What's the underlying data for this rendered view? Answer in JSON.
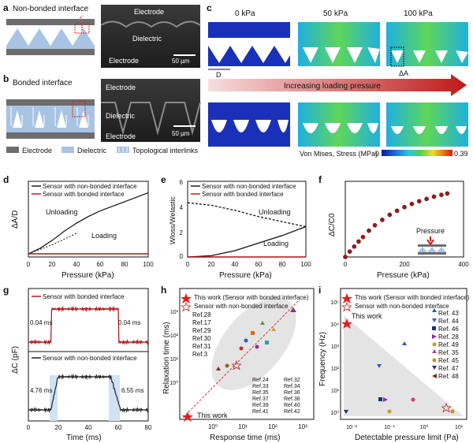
{
  "figure": {
    "panel_a": {
      "letter": "a",
      "callout": "Non-bonded interface",
      "sem_labels": [
        "Electrode",
        "Dielectric",
        "Electrode"
      ],
      "scale": "50 µm"
    },
    "panel_b": {
      "letter": "b",
      "callout": "Bonded interface",
      "sem_labels": [
        "Electrode",
        "Dielectric",
        "Electrode"
      ],
      "scale": "50 µm"
    },
    "legend_ab": {
      "electrode": "Electrode",
      "dielectric": "Dielectric",
      "interlinks": "Topological interlinks",
      "colors": {
        "electrode": "#6d6d6d",
        "dielectric": "#a9c3e3"
      }
    },
    "panel_c": {
      "letter": "c",
      "pressures": [
        "0 kPa",
        "50 kPa",
        "100 kPa"
      ],
      "dim_D": "D",
      "dim_dA": "ΔA",
      "arrow_text": "Increasing loading pressure",
      "colorbar_title": "Von Mises, Stress (MPa)",
      "cbar_min": "0",
      "cbar_max": "0.39"
    },
    "panel_d": {
      "letter": "d",
      "ylabel": "ΔA/D",
      "xlabel": "Pressure (kPa)",
      "legend": [
        "Sensor with non-bonded interface",
        "Sensor with bonded interface"
      ],
      "ann_unloading": "Unloading",
      "ann_loading": "Loading",
      "xticks": [
        "0",
        "20",
        "40",
        "60",
        "80",
        "100"
      ]
    },
    "panel_e": {
      "letter": "e",
      "ylabel": "Wloss/Welastic",
      "xlabel": "Pressure (kPa)",
      "legend": [
        "Sensor with non-bonded interface",
        "Sensor with bonded interface"
      ],
      "ann_unloading": "Unloading",
      "ann_loading": "Loading",
      "xticks": [
        "0",
        "20",
        "40",
        "60",
        "80",
        "100"
      ],
      "yticks": [
        "0",
        "2",
        "4",
        "6"
      ]
    },
    "panel_f": {
      "letter": "f",
      "ylabel": "ΔC/C0",
      "xlabel": "Pressure (kPa)",
      "annotation": "Pressure",
      "xticks": [
        "0",
        "200",
        "400"
      ]
    },
    "panel_g": {
      "letter": "g",
      "ylabel": "ΔC (pF)",
      "xlabel": "Time (ms)",
      "top_label": "Sensor with bonded interface",
      "bottom_label": "Sensor with non-bonded interface",
      "top_rise": "0.04 ms",
      "top_fall": "0.04 ms",
      "bottom_rise": "4.76 ms",
      "bottom_fall": "6.55 ms",
      "xticks": [
        "0",
        "20",
        "40",
        "60",
        "80"
      ]
    },
    "panel_h": {
      "letter": "h",
      "ylabel": "Relaxation time (ms)",
      "xlabel": "Response time (ms)",
      "legend_star": "This work (Sensor with bonded interface)",
      "legend_open": "Sensor with non-bonded interface",
      "this_work": "This work",
      "refs_left": [
        "Ref.28",
        "Ref.17",
        "Ref.29",
        "Ref.30",
        "Ref.31",
        "Ref.3"
      ],
      "refs_grid": [
        "Ref.24",
        "Ref.32",
        "Ref.33",
        "Ref.34",
        "Ref.35",
        "Ref.36",
        "Ref.37",
        "Ref.38",
        "Ref.39",
        "Ref.40",
        "Ref.41",
        "Ref.42"
      ],
      "xticks": [
        "10⁰",
        "10¹",
        "10²",
        "10³"
      ],
      "yticks": [
        "10⁰",
        "10¹",
        "10²",
        "10³"
      ]
    },
    "panel_i": {
      "letter": "i",
      "ylabel": "Frequency (Hz)",
      "xlabel": "Detectable pressure limit (Pa)",
      "legend_star": "This work (Sensor with bonded interface)",
      "legend_open": "Sensor with non-bonded interface",
      "this_work": "This work",
      "refs": [
        "Ref. 43",
        "Ref. 44",
        "Ref. 46",
        "Ref. 28",
        "Ref. 49",
        "Ref. 35",
        "Ref. 45",
        "Ref. 47",
        "Ref. 48"
      ],
      "xticks": [
        "10⁻²",
        "10⁻¹",
        "10⁰",
        "10¹"
      ],
      "yticks": [
        "10⁰",
        "10¹",
        "10²",
        "10³",
        "10⁴",
        "10⁵"
      ]
    }
  },
  "chart_data": [
    {
      "type": "line",
      "title": "",
      "xlabel": "Pressure (kPa)",
      "ylabel": "ΔA/D",
      "xlim": [
        0,
        100
      ],
      "series": [
        {
          "name": "Sensor with non-bonded interface",
          "x": [
            0,
            10,
            20,
            30,
            40,
            50,
            60,
            70,
            80,
            90,
            100
          ],
          "y": [
            0.0,
            0.05,
            0.12,
            0.2,
            0.27,
            0.33,
            0.38,
            0.42,
            0.46,
            0.5,
            0.54
          ]
        },
        {
          "name": "Sensor with bonded interface",
          "x": [
            0,
            100
          ],
          "y": [
            0,
            0
          ]
        }
      ]
    },
    {
      "type": "line",
      "title": "",
      "xlabel": "Pressure (kPa)",
      "ylabel": "Wloss/Welastic",
      "xlim": [
        0,
        100
      ],
      "ylim": [
        0,
        6
      ],
      "series": [
        {
          "name": "Sensor with non-bonded interface (unloading)",
          "x": [
            0,
            20,
            40,
            60,
            80,
            100
          ],
          "y": [
            4.3,
            4.1,
            3.7,
            3.2,
            2.8,
            2.4
          ]
        },
        {
          "name": "Sensor with non-bonded interface (loading)",
          "x": [
            0,
            20,
            40,
            60,
            80,
            100
          ],
          "y": [
            0.0,
            0.1,
            0.5,
            1.1,
            1.7,
            2.4
          ]
        },
        {
          "name": "Sensor with bonded interface",
          "x": [
            0,
            100
          ],
          "y": [
            0,
            0
          ]
        }
      ]
    },
    {
      "type": "scatter",
      "title": "",
      "xlabel": "Pressure (kPa)",
      "ylabel": "ΔC/C0",
      "xlim": [
        0,
        400
      ],
      "series": [
        {
          "name": "",
          "x": [
            0,
            15,
            30,
            45,
            60,
            80,
            100,
            125,
            150,
            175,
            200,
            225,
            250,
            275,
            300,
            325,
            345
          ],
          "y": [
            0,
            1.2,
            2.3,
            3.4,
            4.4,
            5.8,
            7.0,
            8.2,
            9.3,
            10.2,
            11.0,
            11.7,
            12.3,
            12.8,
            13.3,
            13.7,
            14.0
          ]
        }
      ]
    },
    {
      "type": "line",
      "title": "",
      "xlabel": "Time (ms)",
      "ylabel": "ΔC (pF)",
      "xlim": [
        0,
        80
      ],
      "series": [
        {
          "name": "Sensor with bonded interface",
          "x": [
            0,
            15,
            15.04,
            60,
            60.04,
            80
          ],
          "y": [
            0,
            0,
            1,
            1,
            0,
            0
          ]
        },
        {
          "name": "Sensor with non-bonded interface",
          "x": [
            0,
            15,
            19.76,
            55,
            61.55,
            80
          ],
          "y": [
            0,
            0,
            1,
            1,
            0,
            0
          ]
        }
      ]
    },
    {
      "type": "scatter",
      "title": "",
      "xlabel": "Response time (ms)",
      "ylabel": "Relaxation time (ms)",
      "series": [
        {
          "name": "This work (Sensor with bonded interface)",
          "x": [
            0.04
          ],
          "y": [
            0.04
          ]
        },
        {
          "name": "Sensor with non-bonded interface",
          "x": [
            4.76
          ],
          "y": [
            6.55
          ]
        }
      ]
    },
    {
      "type": "scatter",
      "title": "",
      "xlabel": "Detectable pressure limit (Pa)",
      "ylabel": "Frequency (Hz)",
      "series": [
        {
          "name": "This work (Sensor with bonded interface)",
          "x": [
            0.007
          ],
          "y": [
            10000
          ]
        },
        {
          "name": "Ref. 43",
          "x": [
            0.1
          ],
          "y": [
            100
          ]
        },
        {
          "name": "Ref. 44",
          "x": [
            0.04
          ],
          "y": [
            200
          ]
        },
        {
          "name": "Ref. 46",
          "x": [
            0.06
          ],
          "y": [
            4
          ]
        },
        {
          "name": "Ref. 28",
          "x": [
            0.07
          ],
          "y": [
            4
          ]
        },
        {
          "name": "Ref. 49",
          "x": [
            0.1
          ],
          "y": [
            1
          ]
        },
        {
          "name": "Ref. 35",
          "x": [
            0.5
          ],
          "y": [
            5
          ]
        },
        {
          "name": "Ref. 45",
          "x": [
            3
          ],
          "y": [
            1
          ]
        },
        {
          "name": "Ref. 47",
          "x": [
            0.005
          ],
          "y": [
            1
          ]
        },
        {
          "name": "Ref. 48",
          "x": [
            2
          ],
          "y": [
            2
          ]
        }
      ]
    }
  ]
}
